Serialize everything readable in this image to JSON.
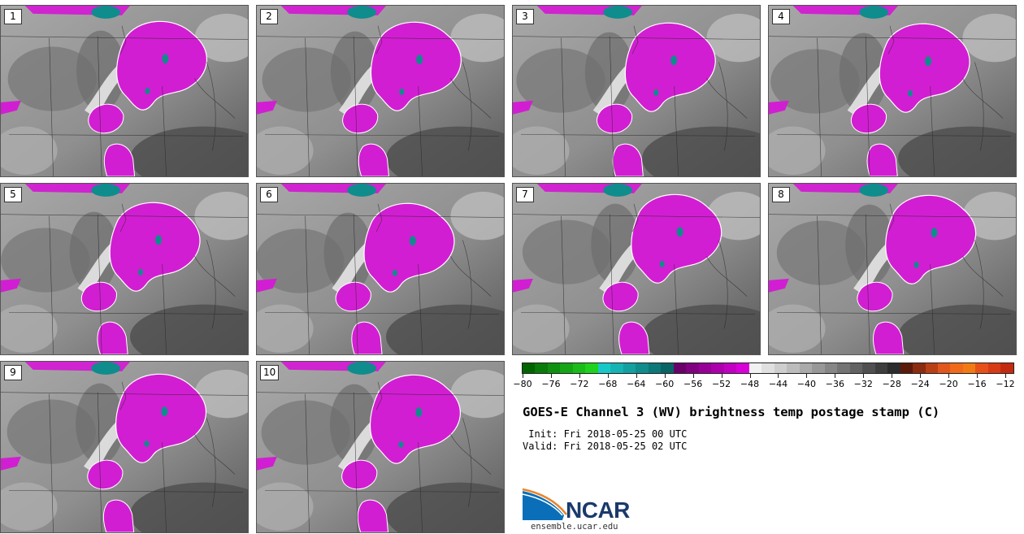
{
  "panels": [
    {
      "label": "1"
    },
    {
      "label": "2"
    },
    {
      "label": "3"
    },
    {
      "label": "4"
    },
    {
      "label": "5"
    },
    {
      "label": "6"
    },
    {
      "label": "7"
    },
    {
      "label": "8"
    },
    {
      "label": "9"
    },
    {
      "label": "10"
    }
  ],
  "colorbar": {
    "tick_labels": [
      "−80",
      "−76",
      "−72",
      "−68",
      "−64",
      "−60",
      "−56",
      "−52",
      "−48",
      "−44",
      "−40",
      "−36",
      "−32",
      "−28",
      "−24",
      "−20",
      "−16",
      "−12"
    ],
    "colors": [
      "#006400",
      "#0a7a0a",
      "#0f900f",
      "#14a614",
      "#19bc19",
      "#1ed21e",
      "#18c8c8",
      "#15b4b4",
      "#12a0a0",
      "#0f8c8c",
      "#0c7878",
      "#096464",
      "#6a006a",
      "#800080",
      "#960096",
      "#ac00ac",
      "#c200c2",
      "#d800d8",
      "#f2f2f2",
      "#e0e0e0",
      "#cecece",
      "#bcbcbc",
      "#aaaaaa",
      "#989898",
      "#868686",
      "#747474",
      "#626262",
      "#505050",
      "#3e3e3e",
      "#2c2c2c",
      "#5c1a0a",
      "#8a2c10",
      "#b84016",
      "#e0561c",
      "#f06a1a",
      "#f27a14",
      "#e8501a",
      "#d83a16",
      "#c42a10"
    ]
  },
  "title": "GOES-E Channel 3 (WV) brightness temp postage stamp (C)",
  "init_line": " Init: Fri 2018-05-25 00 UTC",
  "valid_line": "Valid: Fri 2018-05-25 02 UTC",
  "logo": {
    "text": "NCAR",
    "url": "ensemble.ucar.edu"
  }
}
